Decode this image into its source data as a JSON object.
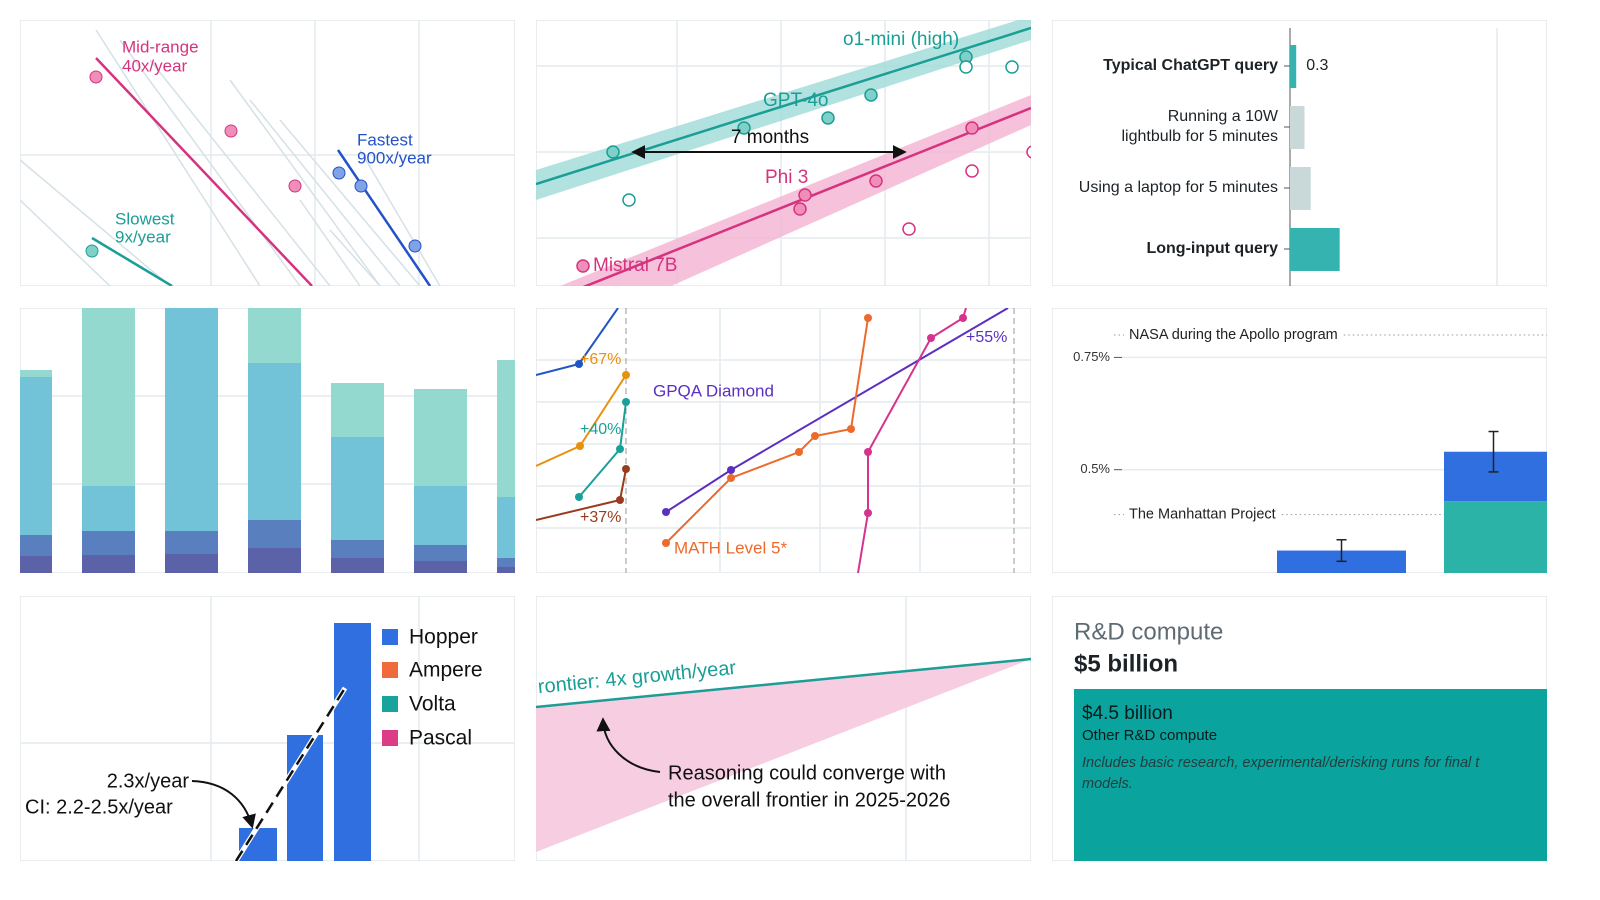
{
  "slopes": {
    "midrange": [
      "Mid-range",
      "40x/year"
    ],
    "fastest": [
      "Fastest",
      "900x/year"
    ],
    "slowest": [
      "Slowest",
      "9x/year"
    ]
  },
  "models": {
    "o1_mini": "o1-mini (high)",
    "gpt_4o": "GPT-4o",
    "gap": "7 months",
    "phi_3": "Phi 3",
    "mistral": "Mistral 7B"
  },
  "energy": {
    "categories": [
      [
        "Typical ChatGPT query"
      ],
      [
        "Running a 10W",
        "lightbulb for 5 minutes"
      ],
      [
        "Using a laptop for 5 minutes"
      ],
      [
        "Long-input query"
      ]
    ],
    "bold": [
      true,
      false,
      false,
      true
    ],
    "values": [
      0.3,
      0.7,
      1.0,
      2.4
    ],
    "value_labels": [
      "0.3",
      null,
      null,
      null
    ],
    "colors": [
      "#35b3b1",
      "#c9d8d8",
      "#c9d8d8",
      "#35b3b1"
    ],
    "xlim": [
      0,
      10
    ]
  },
  "benchmarks": {
    "orange_gain": "+67%",
    "teal_gain": "+40%",
    "brown_gain": "+37%",
    "gpqa": "GPQA Diamond",
    "purple_gain": "+55%",
    "math": "MATH Level 5*"
  },
  "share": {
    "ylim": [
      0.27,
      0.86
    ],
    "yticks": [
      {
        "value": 0.5,
        "label": "0.5%"
      },
      {
        "value": 0.75,
        "label": "0.75%"
      }
    ],
    "references": [
      {
        "label": "NASA during the Apollo program",
        "value": 0.8
      },
      {
        "label": "The Manhattan Project",
        "value": 0.4
      }
    ],
    "bars": [
      {
        "segments": [
          {
            "value": 0.32,
            "color": "#2f6fe0"
          }
        ],
        "error": 0.024
      },
      {
        "segments": [
          {
            "value": 0.43,
            "color": "#2bb3a7"
          },
          {
            "value": 0.11,
            "color": "#2f6fe0"
          }
        ],
        "error": 0.045
      }
    ]
  },
  "gpus": {
    "legend": [
      "Hopper",
      "Ampere",
      "Volta",
      "Pascal"
    ],
    "rate": "2.3x/year",
    "interval": "CI: 2.2-2.5x/year"
  },
  "frontier": {
    "label": "rontier: 4x growth/year",
    "note": [
      "Reasoning could converge with",
      "the overall frontier in 2025-2026"
    ]
  },
  "compute": {
    "title": "R&D compute",
    "total": "$5 billion",
    "block": {
      "amount": "$4.5 billion",
      "label": "Other R&D compute",
      "note": [
        "Includes basic research, experimental/derisking runs for final t",
        "models."
      ]
    }
  }
}
